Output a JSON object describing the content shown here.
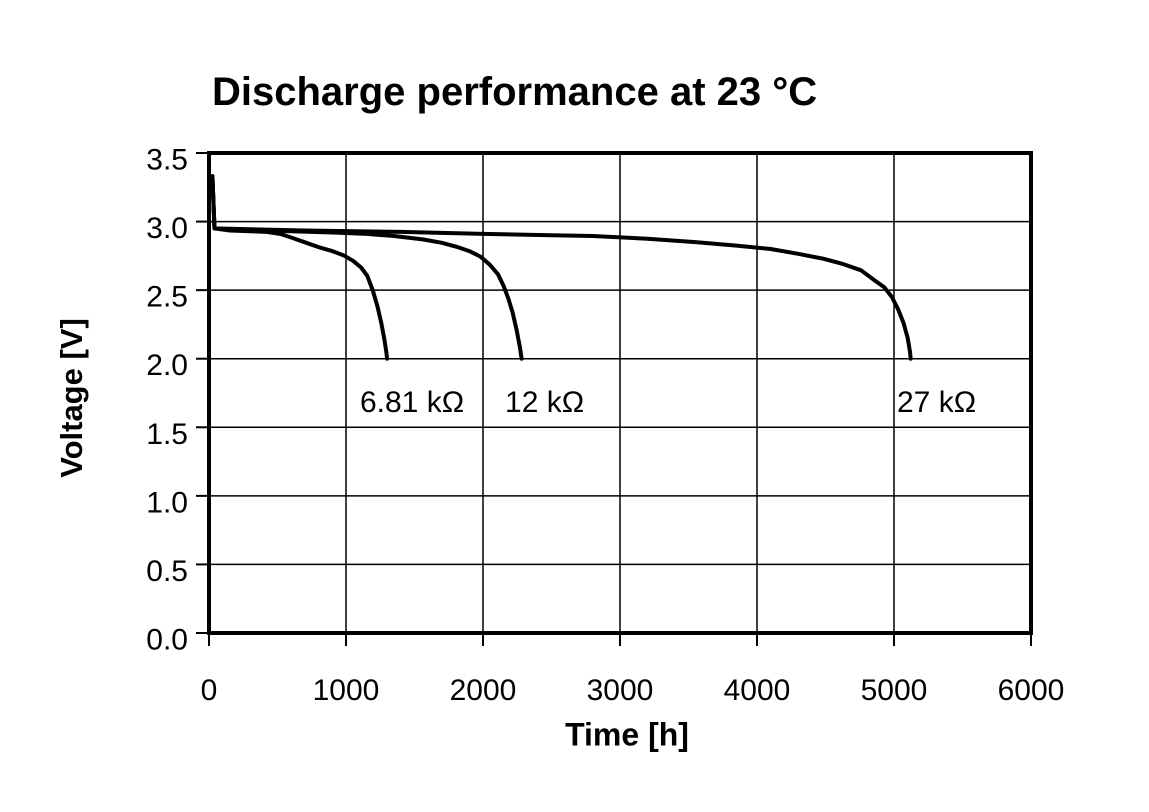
{
  "page": {
    "background": "#ffffff"
  },
  "chart_data": {
    "type": "line",
    "title": "Discharge performance at 23 °C",
    "xlabel": "Time [h]",
    "ylabel": "Voltage [V]",
    "xlim": [
      0,
      6000
    ],
    "ylim": [
      0.0,
      3.5
    ],
    "grid": true,
    "legend": "none (curves labeled inline)",
    "colors": {
      "line": "#000000",
      "grid": "#000000",
      "border": "#000000",
      "text": "#000000",
      "background": "#ffffff"
    },
    "x_ticks": {
      "values": [
        0,
        1000,
        2000,
        3000,
        4000,
        5000,
        6000
      ],
      "labels": [
        "0",
        "1000",
        "2000",
        "3000",
        "4000",
        "5000",
        "6000"
      ]
    },
    "y_ticks": {
      "values": [
        0.0,
        0.5,
        1.0,
        1.5,
        2.0,
        2.5,
        3.0,
        3.5
      ],
      "labels": [
        "0.0",
        "0.5",
        "1.0",
        "1.5",
        "2.0",
        "2.5",
        "3.0",
        "3.5"
      ]
    },
    "series": [
      {
        "id": "curve-6-81-kohm",
        "name": "6.81 kΩ",
        "points": [
          [
            25,
            3.33
          ],
          [
            40,
            2.95
          ],
          [
            150,
            2.935
          ],
          [
            300,
            2.93
          ],
          [
            420,
            2.925
          ],
          [
            520,
            2.91
          ],
          [
            610,
            2.88
          ],
          [
            710,
            2.845
          ],
          [
            810,
            2.81
          ],
          [
            900,
            2.785
          ],
          [
            980,
            2.755
          ],
          [
            1050,
            2.715
          ],
          [
            1110,
            2.665
          ],
          [
            1155,
            2.605
          ],
          [
            1195,
            2.5
          ],
          [
            1230,
            2.38
          ],
          [
            1258,
            2.26
          ],
          [
            1280,
            2.14
          ],
          [
            1294,
            2.05
          ],
          [
            1300,
            2.0
          ]
        ]
      },
      {
        "id": "curve-12-kohm",
        "name": "12 kΩ",
        "points": [
          [
            25,
            3.33
          ],
          [
            40,
            2.95
          ],
          [
            300,
            2.935
          ],
          [
            600,
            2.93
          ],
          [
            900,
            2.92
          ],
          [
            1150,
            2.91
          ],
          [
            1350,
            2.895
          ],
          [
            1560,
            2.87
          ],
          [
            1700,
            2.845
          ],
          [
            1810,
            2.815
          ],
          [
            1900,
            2.785
          ],
          [
            1980,
            2.745
          ],
          [
            2050,
            2.685
          ],
          [
            2110,
            2.615
          ],
          [
            2150,
            2.53
          ],
          [
            2185,
            2.44
          ],
          [
            2215,
            2.34
          ],
          [
            2245,
            2.21
          ],
          [
            2270,
            2.08
          ],
          [
            2282,
            2.0
          ]
        ]
      },
      {
        "id": "curve-27-kohm",
        "name": "27 kΩ",
        "points": [
          [
            25,
            3.33
          ],
          [
            40,
            2.95
          ],
          [
            700,
            2.935
          ],
          [
            1400,
            2.925
          ],
          [
            2000,
            2.91
          ],
          [
            2500,
            2.9
          ],
          [
            2800,
            2.895
          ],
          [
            3200,
            2.875
          ],
          [
            3550,
            2.85
          ],
          [
            3850,
            2.825
          ],
          [
            4100,
            2.8
          ],
          [
            4300,
            2.765
          ],
          [
            4480,
            2.73
          ],
          [
            4630,
            2.69
          ],
          [
            4760,
            2.645
          ],
          [
            4860,
            2.57
          ],
          [
            4930,
            2.52
          ],
          [
            4985,
            2.45
          ],
          [
            5030,
            2.36
          ],
          [
            5070,
            2.26
          ],
          [
            5100,
            2.15
          ],
          [
            5117,
            2.05
          ],
          [
            5122,
            2.0
          ]
        ]
      }
    ],
    "annotations": [
      {
        "text": "6.81 kΩ",
        "t": 1102,
        "v": 1.61
      },
      {
        "text": "12 kΩ",
        "t": 2161,
        "v": 1.61
      },
      {
        "text": "27 kΩ",
        "t": 5022,
        "v": 1.61
      }
    ]
  }
}
